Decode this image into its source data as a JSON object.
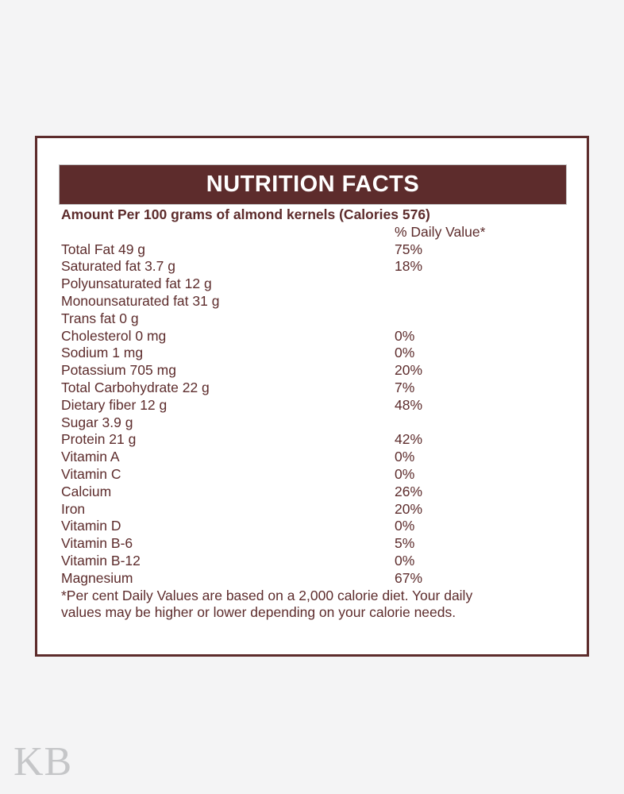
{
  "page": {
    "watermark": "KB"
  },
  "label": {
    "title": "NUTRITION FACTS",
    "serving_line": "Amount Per 100 grams of almond kernels (Calories 576)",
    "daily_value_header": "% Daily Value*",
    "rows": [
      {
        "name": "Total Fat 49 g",
        "dv": "75%"
      },
      {
        "name": "Saturated fat 3.7 g",
        "dv": "18%"
      },
      {
        "name": "Polyunsaturated fat 12 g",
        "dv": ""
      },
      {
        "name": "Monounsaturated fat 31 g",
        "dv": ""
      },
      {
        "name": "Trans fat 0 g",
        "dv": ""
      },
      {
        "name": "Cholesterol 0 mg",
        "dv": "0%"
      },
      {
        "name": "Sodium 1 mg",
        "dv": "0%"
      },
      {
        "name": "Potassium 705 mg",
        "dv": "20%"
      },
      {
        "name": "Total Carbohydrate 22 g",
        "dv": "7%"
      },
      {
        "name": "Dietary fiber 12 g",
        "dv": "48%"
      },
      {
        "name": "Sugar 3.9 g",
        "dv": ""
      },
      {
        "name": "Protein 21 g",
        "dv": "42%"
      },
      {
        "name": "Vitamin A",
        "dv": "0%"
      },
      {
        "name": "Vitamin C",
        "dv": "0%"
      },
      {
        "name": "Calcium",
        "dv": "26%"
      },
      {
        "name": "Iron",
        "dv": "20%"
      },
      {
        "name": "Vitamin D",
        "dv": "0%"
      },
      {
        "name": "Vitamin B-6",
        "dv": "5%"
      },
      {
        "name": "Vitamin B-12",
        "dv": "0%"
      },
      {
        "name": "Magnesium",
        "dv": "67%"
      }
    ],
    "footnote_line1": "*Per cent Daily Values are based on a 2,000 calorie diet. Your daily",
    "footnote_line2": "values may be higher or lower depending on your calorie needs.",
    "colors": {
      "maroon": "#5d2c2c",
      "page_bg": "#f4f4f5",
      "card_bg": "#ffffff",
      "title_text": "#ffffff",
      "watermark": "#c5c6c8"
    }
  }
}
